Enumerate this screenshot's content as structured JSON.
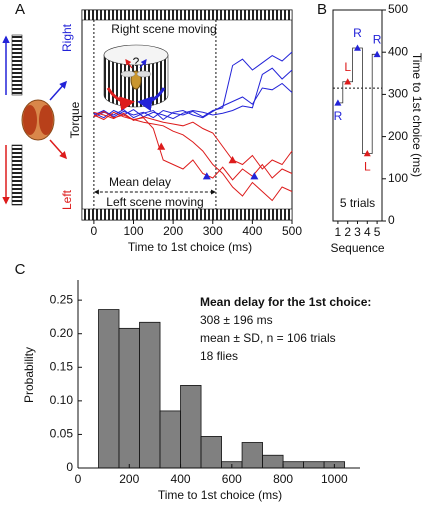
{
  "chart_data": [
    {
      "type": "line",
      "panel_label": "A",
      "xlabel": "Time to 1st choice (ms)",
      "ylabel": "Torque",
      "y_top_label": "Right",
      "y_bottom_label": "Left",
      "annotations": {
        "right_scene": "Right scene moving",
        "left_scene": "Left scene moving",
        "mean_delay": "Mean delay",
        "cartoon": "?"
      },
      "x": [
        0,
        25,
        50,
        75,
        100,
        125,
        150,
        175,
        200,
        225,
        250,
        275,
        300,
        325,
        350,
        375,
        400,
        425,
        450,
        475,
        500
      ],
      "xlim": [
        -30,
        500
      ],
      "xticks": [
        0,
        100,
        200,
        300,
        400,
        500
      ],
      "ylim": [
        -1,
        1
      ],
      "mean_delay": 308,
      "series": [
        {
          "color": "#2323d8",
          "values": [
            0,
            0.05,
            -0.02,
            0.04,
            0,
            0.03,
            -0.03,
            0.05,
            0.02,
            0,
            0.04,
            -0.02,
            0.05,
            0.08,
            0.55,
            0.62,
            0.5,
            0.58,
            0.66,
            0.6,
            0.7
          ]
        },
        {
          "color": "#2323d8",
          "values": [
            0.02,
            -0.03,
            0.05,
            0,
            0.06,
            -0.02,
            0.03,
            0,
            -0.04,
            0.02,
            0.05,
            0.03,
            0,
            0.02,
            0.05,
            0.1,
            0.08,
            0.45,
            0.52,
            0.4,
            0.5
          ]
        },
        {
          "color": "#2323d8",
          "values": [
            -0.02,
            0.03,
            0,
            0.06,
            -0.03,
            0.02,
            0.05,
            -0.05,
            0.03,
            0.05,
            0,
            -0.03,
            0.04,
            0.1,
            0.15,
            0.2,
            0.12,
            0.3,
            0.28,
            0.35,
            0.25
          ]
        },
        {
          "color": "#dd1c1c",
          "values": [
            0,
            -0.05,
            0.03,
            -0.02,
            -0.05,
            -0.03,
            -0.15,
            -0.5,
            -0.55,
            -0.6,
            -0.5,
            -0.65,
            -0.7,
            -0.58,
            -0.72,
            -0.6,
            -0.68,
            -0.55,
            -0.7,
            -0.6,
            -0.65
          ]
        },
        {
          "color": "#dd1c1c",
          "values": [
            0.03,
            0,
            -0.04,
            0.02,
            -0.06,
            -0.02,
            -0.05,
            -0.08,
            -0.1,
            -0.12,
            -0.08,
            -0.15,
            -0.2,
            -0.35,
            -0.5,
            -0.55,
            -0.45,
            -0.6,
            -0.5,
            -0.55,
            -0.4
          ]
        },
        {
          "color": "#dd1c1c",
          "values": [
            -0.02,
            0.04,
            -0.03,
            0,
            -0.05,
            -0.08,
            -0.1,
            -0.12,
            -0.18,
            -0.22,
            -0.3,
            -0.4,
            -0.55,
            -0.65,
            -0.8,
            -0.9,
            -0.75,
            -0.85,
            -0.95,
            -0.8,
            -0.85
          ]
        }
      ],
      "choices": {
        "x": [
          170,
          285,
          350,
          405
        ],
        "y": [
          -0.35,
          -0.68,
          -0.5,
          -0.68
        ],
        "colors": [
          "#dd1c1c",
          "#2323d8",
          "#dd1c1c",
          "#2323d8"
        ]
      }
    },
    {
      "type": "scatter",
      "panel_label": "B",
      "xlabel": "Sequence",
      "ylabel": "Time to 1st choice (ms)",
      "annotation": "5 trials",
      "x": [
        1,
        2,
        3,
        4,
        5
      ],
      "values": [
        280,
        330,
        410,
        160,
        395
      ],
      "point_labels": [
        "R",
        "L",
        "R",
        "L",
        "R"
      ],
      "colors": [
        "#2323d8",
        "#dd1c1c",
        "#2323d8",
        "#dd1c1c",
        "#2323d8"
      ],
      "xlim": [
        0.5,
        5.5
      ],
      "xticks": [
        1,
        2,
        3,
        4,
        5
      ],
      "ylim": [
        0,
        500
      ],
      "yticks": [
        0,
        100,
        200,
        300,
        400,
        500
      ],
      "mean_line": 315
    },
    {
      "type": "histogram",
      "panel_label": "C",
      "xlabel": "Time to 1st choice (ms)",
      "ylabel": "Probability",
      "annotation_title": "Mean delay for the 1st choice:",
      "annotation": [
        "308 ± 196 ms",
        "mean ± SD, n = 106 trials",
        "18 flies"
      ],
      "bins": [
        80,
        160,
        240,
        320,
        400,
        480,
        560,
        640,
        720,
        800,
        880,
        960,
        1040
      ],
      "values": [
        0.236,
        0.208,
        0.217,
        0.085,
        0.123,
        0.047,
        0.0094,
        0.038,
        0.019,
        0.0094,
        0.0094,
        0.0094
      ],
      "color": "#808080",
      "xlim": [
        0,
        1100
      ],
      "xticks": [
        0,
        200,
        400,
        600,
        800,
        1000
      ],
      "ylim": [
        0,
        0.28
      ],
      "yticks": [
        0,
        0.05,
        {
          "value": 0.1,
          "label": "0.10"
        },
        0.15,
        {
          "value": 0.2,
          "label": "0.20"
        },
        0.25
      ]
    }
  ]
}
